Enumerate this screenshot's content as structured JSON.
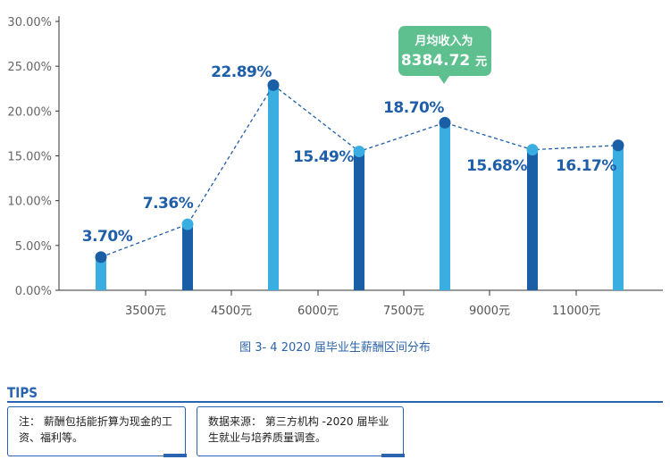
{
  "chart_data": {
    "type": "bar",
    "y_ticks": [
      "0.00%",
      "5.00%",
      "10.00%",
      "15.00%",
      "20.00%",
      "25.00%",
      "30.00%"
    ],
    "ylim": [
      0,
      30
    ],
    "x_tick_labels": [
      "3500元",
      "4500元",
      "6000元",
      "7500元",
      "9000元",
      "11000元"
    ],
    "values": [
      3.7,
      7.36,
      22.89,
      15.49,
      18.7,
      15.68,
      16.17
    ],
    "value_labels": [
      "3.70%",
      "7.36%",
      "22.89%",
      "15.49%",
      "18.70%",
      "15.68%",
      "16.17%"
    ],
    "bar_colors": [
      "#3aaee0",
      "#1a5fa6",
      "#3aaee0",
      "#1a5fa6",
      "#3aaee0",
      "#1a5fa6",
      "#3aaee0"
    ],
    "dot_colors": [
      "#1a5fa6",
      "#3aaee0",
      "#1a5fa6",
      "#3aaee0",
      "#1a5fa6",
      "#3aaee0",
      "#1a5fa6"
    ],
    "trend_line": "dashed",
    "callout": {
      "line1": "月均收入为",
      "line2": "8384.72",
      "unit": "元",
      "color": "#5fc08f"
    }
  },
  "caption": "图 3- 4  2020 届毕业生薪酬区间分布",
  "tips": {
    "tab": "TIPS",
    "note1": "注：  薪酬包括能折算为现金的工资、福利等。",
    "note2": "数据来源：  第三方机构 -2020 届毕业生就业与培养质量调查。"
  },
  "colors": {
    "axis": "#333333",
    "accent_blue": "#2a63b0"
  }
}
